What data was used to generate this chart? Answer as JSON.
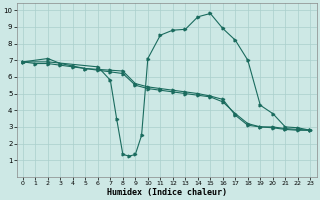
{
  "xlabel": "Humidex (Indice chaleur)",
  "bg_color": "#cde8e5",
  "grid_color": "#aacfcc",
  "line_color": "#1a6b5e",
  "xlim": [
    -0.5,
    23.5
  ],
  "ylim": [
    0,
    10.4
  ],
  "xticks": [
    0,
    1,
    2,
    3,
    4,
    5,
    6,
    7,
    8,
    9,
    10,
    11,
    12,
    13,
    14,
    15,
    16,
    17,
    18,
    19,
    20,
    21,
    22,
    23
  ],
  "yticks": [
    1,
    2,
    3,
    4,
    5,
    6,
    7,
    8,
    9,
    10
  ],
  "line1_x": [
    0,
    1,
    2,
    3,
    4,
    5,
    6,
    7,
    8,
    9,
    10,
    11,
    12,
    13,
    14,
    15,
    16,
    17,
    18,
    19,
    20,
    21,
    22,
    23
  ],
  "line1_y": [
    6.9,
    6.8,
    6.8,
    6.7,
    6.6,
    6.5,
    6.4,
    6.3,
    6.2,
    5.5,
    5.3,
    5.2,
    5.1,
    5.0,
    4.9,
    4.8,
    4.5,
    3.8,
    3.2,
    3.0,
    3.0,
    2.9,
    2.85,
    2.8
  ],
  "line2_x": [
    0,
    2,
    3,
    4,
    5,
    6,
    7,
    8,
    9,
    10,
    11,
    12,
    13,
    14,
    15,
    16,
    17,
    18,
    19,
    20,
    21,
    22,
    23
  ],
  "line2_y": [
    6.9,
    7.1,
    6.8,
    6.65,
    6.5,
    6.45,
    6.4,
    6.35,
    5.6,
    5.4,
    5.3,
    5.2,
    5.1,
    5.0,
    4.85,
    4.65,
    3.7,
    3.1,
    3.0,
    2.95,
    2.85,
    2.8,
    2.8
  ],
  "line3_x": [
    0,
    2,
    6,
    7,
    7.5,
    8,
    8.5,
    9,
    9.5,
    10,
    11,
    12,
    13,
    14,
    15,
    16,
    17,
    18,
    19,
    20,
    21,
    22,
    23
  ],
  "line3_y": [
    6.9,
    6.9,
    6.6,
    5.8,
    3.5,
    1.35,
    1.25,
    1.35,
    2.5,
    7.1,
    8.5,
    8.8,
    8.85,
    9.6,
    9.8,
    8.9,
    8.2,
    7.0,
    4.3,
    3.8,
    3.0,
    2.95,
    2.8
  ]
}
